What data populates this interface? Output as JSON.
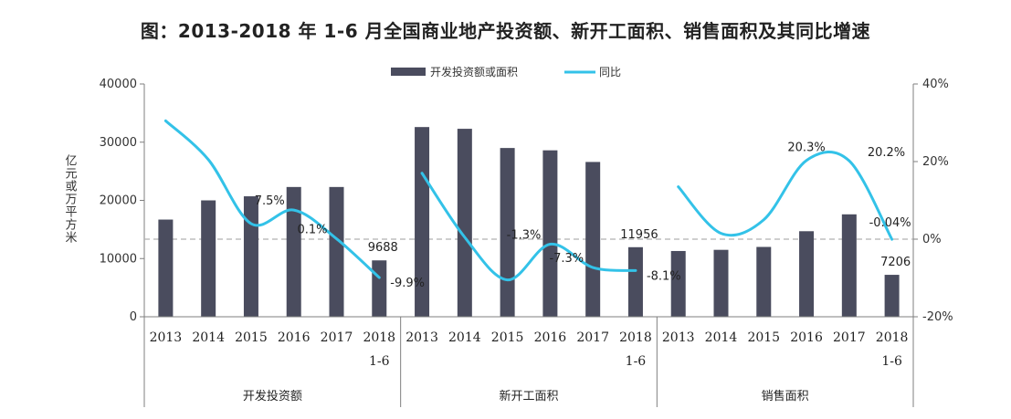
{
  "chart_data": {
    "type": "bar+line",
    "title": "图：2013-2018 年 1-6 月全国商业地产投资额、新开工面积、销售面积及其同比增速",
    "legend": [
      "开发投资额或面积",
      "同比"
    ],
    "legend_position": "top",
    "ylabel": "亿元或万平方米",
    "ylim": [
      0,
      40000
    ],
    "y_ticks": [
      "0",
      "10000",
      "20000",
      "30000",
      "40000"
    ],
    "y2lim": [
      -20,
      40
    ],
    "y2_ticks": [
      "-20%",
      "0%",
      "20%",
      "40%"
    ],
    "groups": [
      {
        "name": "开发投资额",
        "categories": [
          "2013",
          "2014",
          "2015",
          "2016",
          "2017",
          "2018 1-6"
        ],
        "values": [
          16700,
          20000,
          20700,
          22300,
          22300,
          9688
        ],
        "yoy": [
          30.5,
          20.5,
          4.0,
          7.5,
          0.1,
          -9.9
        ]
      },
      {
        "name": "新开工面积",
        "categories": [
          "2013",
          "2014",
          "2015",
          "2016",
          "2017",
          "2018 1-6"
        ],
        "values": [
          32600,
          32300,
          29000,
          28600,
          26600,
          11956
        ],
        "yoy": [
          17.0,
          0.5,
          -10.5,
          -1.3,
          -7.3,
          -8.1
        ]
      },
      {
        "name": "销售面积",
        "categories": [
          "2013",
          "2014",
          "2015",
          "2016",
          "2017",
          "2018 1-6"
        ],
        "values": [
          11300,
          11500,
          12000,
          14700,
          17600,
          7206
        ],
        "yoy": [
          13.5,
          1.5,
          5.0,
          20.3,
          20.2,
          -0.04
        ]
      }
    ],
    "bar_labels": [
      {
        "group": 0,
        "index": 5,
        "text": "9688"
      },
      {
        "group": 1,
        "index": 5,
        "text": "11956"
      },
      {
        "group": 2,
        "index": 5,
        "text": "7206"
      }
    ],
    "line_labels": [
      {
        "group": 0,
        "index": 3,
        "text": "7.5%"
      },
      {
        "group": 0,
        "index": 4,
        "text": "0.1%"
      },
      {
        "group": 0,
        "index": 5,
        "text": "-9.9%"
      },
      {
        "group": 1,
        "index": 3,
        "text": "-1.3%"
      },
      {
        "group": 1,
        "index": 4,
        "text": "-7.3%"
      },
      {
        "group": 1,
        "index": 5,
        "text": "-8.1%"
      },
      {
        "group": 2,
        "index": 3,
        "text": "20.3%"
      },
      {
        "group": 2,
        "index": 4,
        "text": "20.2%"
      },
      {
        "group": 2,
        "index": 5,
        "text": "-0.04%"
      }
    ],
    "colors": {
      "bar": "#4a4c5e",
      "line": "#33c2e8",
      "zero_line": "#b0b0b0",
      "axis": "#7f7f7f"
    }
  }
}
